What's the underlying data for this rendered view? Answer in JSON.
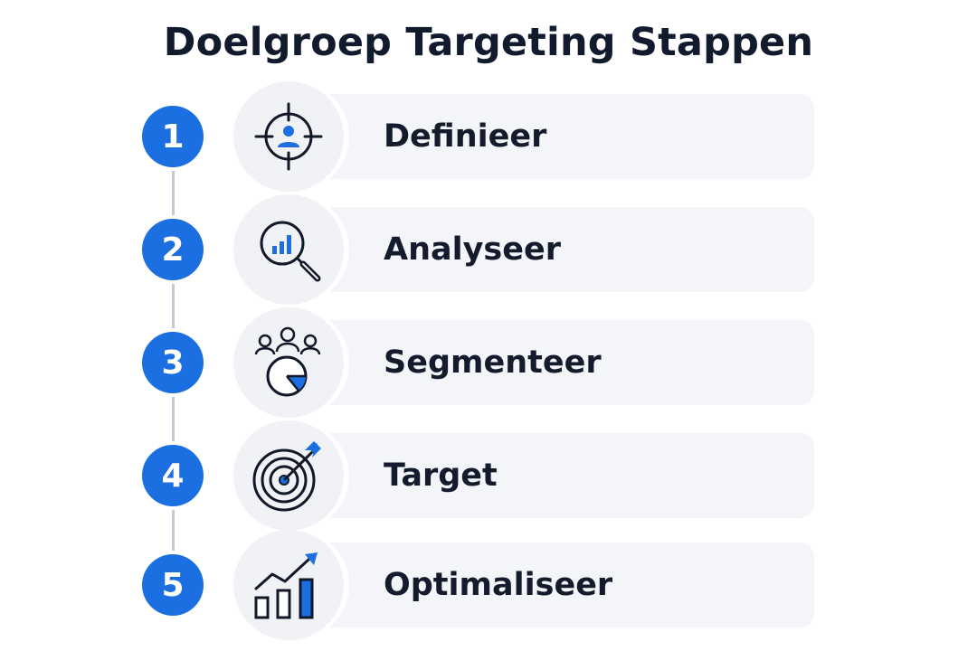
{
  "title": "Doelgroep Targeting Stappen",
  "colors": {
    "accent": "#1c6fe0",
    "card": "#f4f5f8",
    "text": "#141b2d",
    "connector": "#c3cad6"
  },
  "steps": [
    {
      "number": "1",
      "label": "Definieer",
      "icon": "crosshair-person-icon"
    },
    {
      "number": "2",
      "label": "Analyseer",
      "icon": "magnifier-chart-icon"
    },
    {
      "number": "3",
      "label": "Segmenteer",
      "icon": "people-pie-icon"
    },
    {
      "number": "4",
      "label": "Target",
      "icon": "bullseye-arrow-icon"
    },
    {
      "number": "5",
      "label": "Optimaliseer",
      "icon": "growth-chart-icon"
    }
  ]
}
